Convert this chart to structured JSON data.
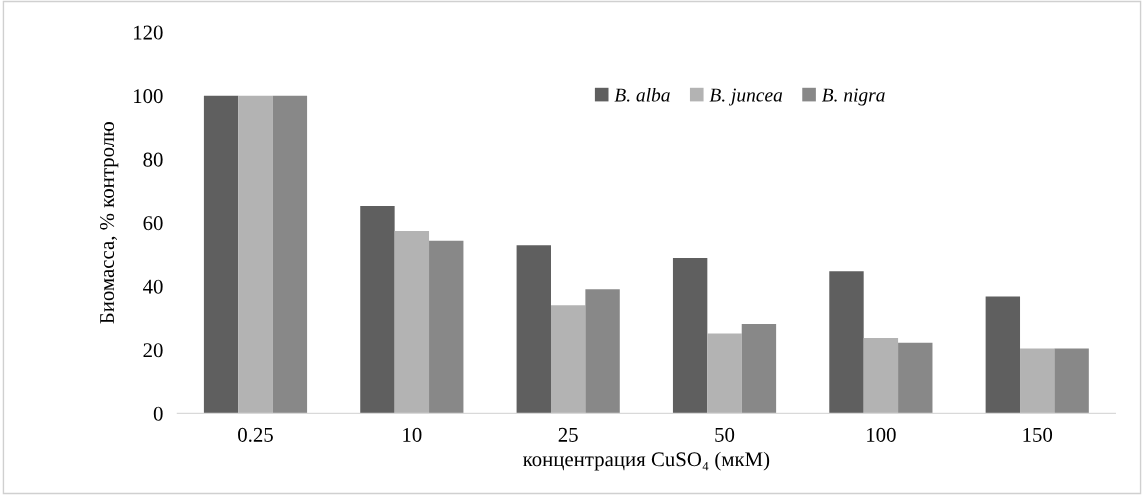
{
  "chart_data": {
    "type": "bar",
    "xlabel": "концентрация CuSO₄ (мкМ)",
    "ylabel": "Биомасса, % контролю",
    "categories": [
      "0.25",
      "10",
      "25",
      "50",
      "100",
      "150"
    ],
    "series": [
      {
        "name": "B. alba",
        "color": "#5f5f5f",
        "values": [
          100,
          65.3,
          52.9,
          48.9,
          44.7,
          36.8
        ]
      },
      {
        "name": "B. juncea",
        "color": "#b3b3b3",
        "values": [
          100,
          57.4,
          34.0,
          25.1,
          23.7,
          20.4
        ]
      },
      {
        "name": "B. nigra",
        "color": "#888888",
        "values": [
          100,
          54.3,
          39.1,
          28.1,
          22.2,
          20.4
        ]
      }
    ],
    "ylim": [
      0,
      120
    ],
    "yticks": [
      0,
      20,
      40,
      60,
      80,
      100,
      120
    ],
    "grid": false,
    "legend": "top"
  }
}
